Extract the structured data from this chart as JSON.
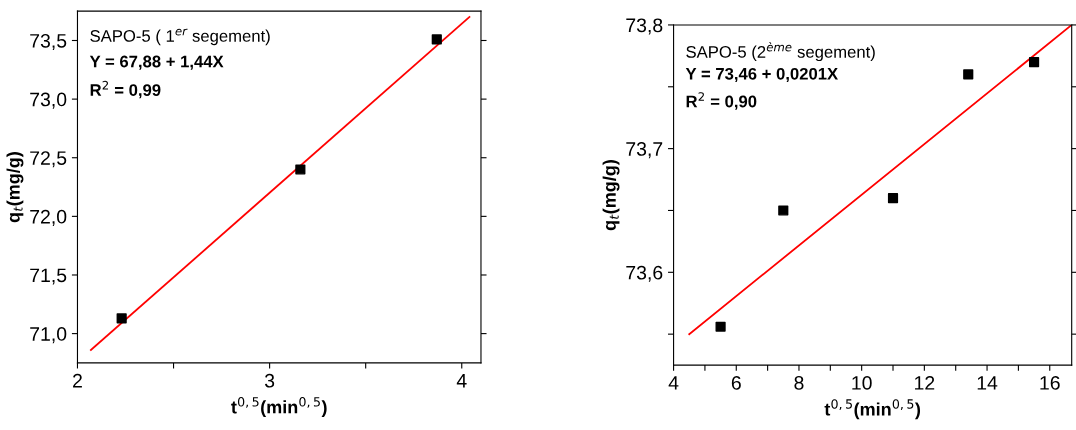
{
  "chart_data": [
    {
      "type": "scatter",
      "xlabel": "t$^{0,5}$(min$^{0,5}$)",
      "ylabel": "q$_{t}$(mg/g)",
      "annotations": [
        "SAPO-5 ( 1$^{er}$ segement)",
        "Y = 67,88 + 1,44X",
        "R$^{2}$ = 0,99"
      ],
      "series": [
        {
          "color": "#000000",
          "marker": "square",
          "x": [
            2.23,
            3.16,
            3.87
          ],
          "values": [
            71.13,
            72.4,
            73.51
          ]
        },
        {
          "type": "line",
          "color": "#ff0000",
          "marker": "none",
          "line_style": "solid",
          "x": [
            2.07,
            4.04
          ],
          "values": [
            70.86,
            73.7
          ]
        }
      ],
      "xlim": [
        2,
        4.1
      ],
      "xticks": [
        2,
        {
          "value": 2.5,
          "label": null
        },
        3,
        {
          "value": 3.5,
          "label": null
        },
        4
      ],
      "ylim": [
        70.75,
        73.75
      ],
      "yticks": [
        {
          "value": 71.0,
          "label": "71,0"
        },
        {
          "value": 71.5,
          "label": "71,5"
        },
        {
          "value": 72.0,
          "label": "72,0"
        },
        {
          "value": 72.5,
          "label": "72,5"
        },
        {
          "value": 73.0,
          "label": "73,0"
        },
        {
          "value": 73.5,
          "label": "73,5"
        }
      ],
      "grid": false,
      "legend": false
    },
    {
      "type": "scatter",
      "xlabel": "t$^{0,5}$(min$^{0,5}$)",
      "ylabel": "q$_{t}$(mg/g)",
      "annotations": [
        "SAPO-5 (2$^{ème}$ segement)",
        "Y = 73,46 + 0,0201X",
        "R$^{2}$ = 0,90"
      ],
      "series": [
        {
          "color": "#000000",
          "marker": "square",
          "x": [
            5.5,
            7.5,
            11.0,
            13.4,
            15.5
          ],
          "values": [
            73.556,
            73.65,
            73.66,
            73.76,
            73.77
          ]
        },
        {
          "type": "line",
          "color": "#ff0000",
          "marker": "none",
          "line_style": "solid",
          "x": [
            4.5,
            16.7
          ],
          "values": [
            73.55,
            73.8
          ]
        }
      ],
      "xlim": [
        4,
        16.7
      ],
      "xticks": [
        4,
        {
          "value": 5,
          "label": null
        },
        6,
        {
          "value": 7,
          "label": null
        },
        8,
        {
          "value": 9,
          "label": null
        },
        10,
        {
          "value": 11,
          "label": null
        },
        12,
        {
          "value": 13,
          "label": null
        },
        14,
        {
          "value": 15,
          "label": null
        },
        16
      ],
      "ylim": [
        73.525,
        73.8
      ],
      "yticks": [
        {
          "value": 73.55,
          "label": null
        },
        {
          "value": 73.6,
          "label": "73,6"
        },
        {
          "value": 73.65,
          "label": null
        },
        {
          "value": 73.7,
          "label": "73,7"
        },
        {
          "value": 73.75,
          "label": null
        },
        {
          "value": 73.8,
          "label": "73,8"
        }
      ],
      "grid": false,
      "legend": false
    }
  ]
}
